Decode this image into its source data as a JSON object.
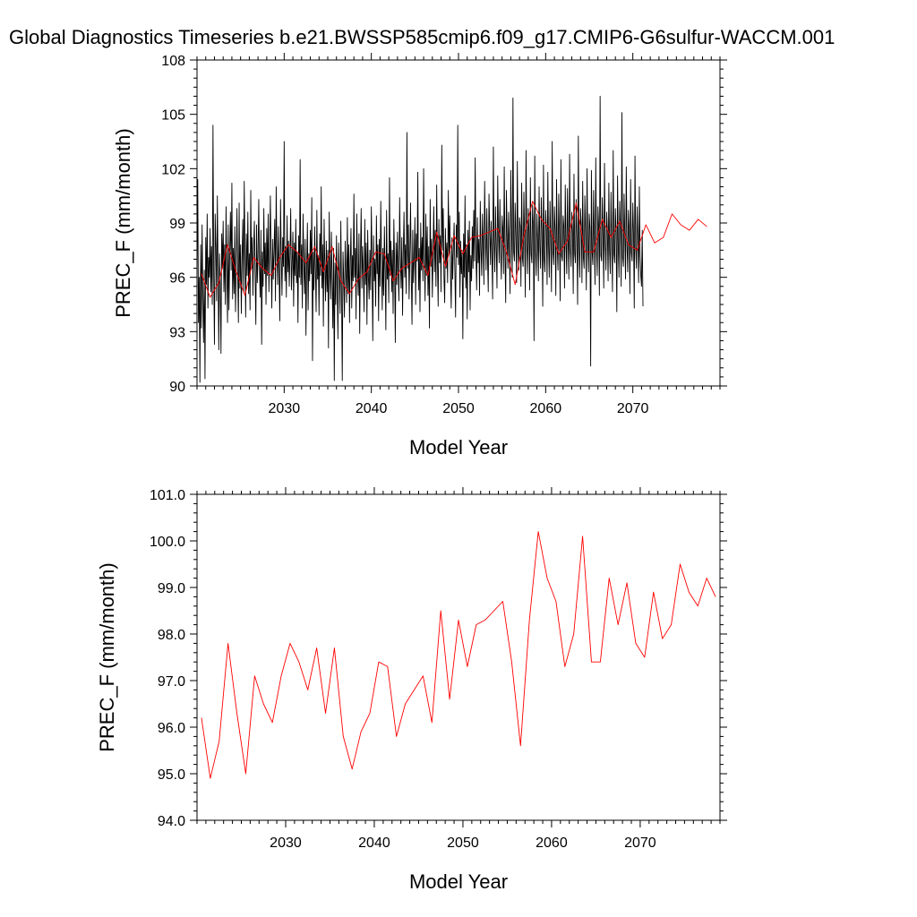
{
  "title": "Global Diagnostics Timeseries b.e21.BWSSP585cmip6.f09_g17.CMIP6-G6sulfur-WACCM.001",
  "colors": {
    "monthly_line": "#000000",
    "annual_line": "#ff0000",
    "axis": "#000000"
  },
  "chart_data": [
    {
      "type": "line",
      "xlabel": "Model Year",
      "ylabel": "PREC_F (mm/month)",
      "xlim": [
        2020,
        2080
      ],
      "ylim": [
        90,
        108
      ],
      "x_ticks": [
        2030,
        2040,
        2050,
        2060,
        2070
      ],
      "x_tick_labels": [
        "2030",
        "2040",
        "2050",
        "2060",
        "2070"
      ],
      "y_ticks": [
        90,
        93,
        96,
        99,
        102,
        105,
        108
      ],
      "y_tick_labels": [
        "90",
        "93",
        "96",
        "99",
        "102",
        "105",
        "108"
      ],
      "grid": false,
      "legend": "none",
      "series": [
        {
          "style": "monthly",
          "color": "#000000",
          "x_start": 2020,
          "x_step": 0.08333,
          "values": [
            96.2,
            101.4,
            93.5,
            96.0,
            90.2,
            97.8,
            93.2,
            98.9,
            95.1,
            92.4,
            96.4,
            90.4,
            98.2,
            95.6,
            99.5,
            94.3,
            97.1,
            96.0,
            98.7,
            95.2,
            97.7,
            94.5,
            104.4,
            96.2,
            92.3,
            99.5,
            97.6,
            94.7,
            100.5,
            96.2,
            92.0,
            97.3,
            95.7,
            91.8,
            98.4,
            96.5,
            99.1,
            95.2,
            97.8,
            94.5,
            99.9,
            96.2,
            93.5,
            98.9,
            94.2,
            97.3,
            99.6,
            96.4,
            101.2,
            94.8,
            97.6,
            95.1,
            98.8,
            94.1,
            96.5,
            99.8,
            96.2,
            93.5,
            100.1,
            95.4,
            97.8,
            94.0,
            96.9,
            99.2,
            95.2,
            101.3,
            97.5,
            93.8,
            98.4,
            96.1,
            99.6,
            95.1,
            97.3,
            94.2,
            100.8,
            96.5,
            98.2,
            95.0,
            97.6,
            99.1,
            96.0,
            93.4,
            98.9,
            95.7,
            97.2,
            100.3,
            96.4,
            94.9,
            98.6,
            92.3,
            97.4,
            95.5,
            99.8,
            96.2,
            97.9,
            94.5,
            98.7,
            96.1,
            99.5,
            95.2,
            97.6,
            100.5,
            96.8,
            94.3,
            98.1,
            95.9,
            97.5,
            99.2,
            94.7,
            101.0,
            97.3,
            95.6,
            98.8,
            96.4,
            93.6,
            100.3,
            97.1,
            95.0,
            98.2,
            96.6,
            103.5,
            95.8,
            97.7,
            94.9,
            99.4,
            96.3,
            98.0,
            95.5,
            97.2,
            99.8,
            95.3,
            96.7,
            98.5,
            94.4,
            97.9,
            96.1,
            99.2,
            95.7,
            97.4,
            93.5,
            98.3,
            96.0,
            102.5,
            95.6,
            97.8,
            94.3,
            99.5,
            96.8,
            95.1,
            98.1,
            92.8,
            96.5,
            99.0,
            94.2,
            97.3,
            95.8,
            98.6,
            96.2,
            100.4,
            91.4,
            97.4,
            95.3,
            98.8,
            96.5,
            94.1,
            99.7,
            95.9,
            97.2,
            93.9,
            98.4,
            96.1,
            101.0,
            95.4,
            97.8,
            93.3,
            99.2,
            96.6,
            94.7,
            98.0,
            95.2,
            97.5,
            92.1,
            99.6,
            96.3,
            94.8,
            98.5,
            95.9,
            93.2,
            97.6,
            90.3,
            96.8,
            94.5,
            98.3,
            95.7,
            92.6,
            97.9,
            96.1,
            94.0,
            99.1,
            95.3,
            90.3,
            97.4,
            95.9,
            93.8,
            98.0,
            96.4,
            94.6,
            99.3,
            95.1,
            97.8,
            93.5,
            96.9,
            98.7,
            94.3,
            97.2,
            95.8,
            100.6,
            96.0,
            97.6,
            93.7,
            99.5,
            96.3,
            95.0,
            98.4,
            92.9,
            97.1,
            99.8,
            95.4,
            97.7,
            96.2,
            94.1,
            99.2,
            95.6,
            97.9,
            93.4,
            98.6,
            96.0,
            94.8,
            97.5,
            95.3,
            99.9,
            96.7,
            92.5,
            98.3,
            95.8,
            97.0,
            94.4,
            99.4,
            96.2,
            97.8,
            93.6,
            98.1,
            95.5,
            100.2,
            96.9,
            94.2,
            97.6,
            95.0,
            98.8,
            96.4,
            93.1,
            99.7,
            95.9,
            97.3,
            94.6,
            101.5,
            96.1,
            98.0,
            95.2,
            97.5,
            94.0,
            99.2,
            96.8,
            92.4,
            97.9,
            95.6,
            98.5,
            96.3,
            94.7,
            100.4,
            97.0,
            95.4,
            98.2,
            93.9,
            97.4,
            99.6,
            96.0,
            97.8,
            95.1,
            104.0,
            96.5,
            98.9,
            94.8,
            97.3,
            100.1,
            96.2,
            93.4,
            98.6,
            95.7,
            97.1,
            99.3,
            94.5,
            98.4,
            96.9,
            101.8,
            95.3,
            97.6,
            94.1,
            99.0,
            96.4,
            98.2,
            95.8,
            102.0,
            97.2,
            94.7,
            99.5,
            96.1,
            98.8,
            95.0,
            97.7,
            93.2,
            100.3,
            96.6,
            98.1,
            94.9,
            97.4,
            99.9,
            96.3,
            98.6,
            95.5,
            101.1,
            97.0,
            94.4,
            99.2,
            96.8,
            98.3,
            95.2,
            103.3,
            97.5,
            99.8,
            96.0,
            94.6,
            98.7,
            96.5,
            97.9,
            95.7,
            100.8,
            97.3,
            99.4,
            96.1,
            94.3,
            98.2,
            95.9,
            97.6,
            99.0,
            96.4,
            93.8,
            98.9,
            97.1,
            104.4,
            96.7,
            99.6,
            94.9,
            98.0,
            96.2,
            97.5,
            92.6,
            98.4,
            96.0,
            100.5,
            95.4,
            97.8,
            93.7,
            98.6,
            96.3,
            99.1,
            94.2,
            97.2,
            95.8,
            98.8,
            96.5,
            99.7,
            96.9,
            102.6,
            97.4,
            95.3,
            99.3,
            96.8,
            98.1,
            95.0,
            100.2,
            97.6,
            96.1,
            99.5,
            97.9,
            95.6,
            101.3,
            98.2,
            96.4,
            99.8,
            97.0,
            95.2,
            100.6,
            98.5,
            96.7,
            99.1,
            97.3,
            94.8,
            103.2,
            98.0,
            96.3,
            99.9,
            97.7,
            95.4,
            101.6,
            98.4,
            96.8,
            100.3,
            97.5,
            95.9,
            99.4,
            98.7,
            96.2,
            102.1,
            97.2,
            94.6,
            100.8,
            98.1,
            96.5,
            99.6,
            97.8,
            95.1,
            101.9,
            98.6,
            96.0,
            105.9,
            97.4,
            96.9,
            100.1,
            98.3,
            95.7,
            102.4,
            97.6,
            96.4,
            99.3,
            98.8,
            95.5,
            101.2,
            97.1,
            96.6,
            100.7,
            98.2,
            94.9,
            103.0,
            97.9,
            96.2,
            99.8,
            98.5,
            95.3,
            101.5,
            97.3,
            96.8,
            100.0,
            98.9,
            92.5,
            102.7,
            97.5,
            96.1,
            99.5,
            98.0,
            95.8,
            101.0,
            97.7,
            96.5,
            100.4,
            98.4,
            94.4,
            102.2,
            97.0,
            96.3,
            99.7,
            98.7,
            95.6,
            101.8,
            97.8,
            96.0,
            100.2,
            98.1,
            95.2,
            103.5,
            97.4,
            96.7,
            99.9,
            98.6,
            95.0,
            101.4,
            97.6,
            96.4,
            100.6,
            98.3,
            94.7,
            102.5,
            97.2,
            96.9,
            99.4,
            98.8,
            95.4,
            101.1,
            97.9,
            96.2,
            100.9,
            98.0,
            95.9,
            102.8,
            97.5,
            96.6,
            99.6,
            98.5,
            95.1,
            101.7,
            97.3,
            96.8,
            100.3,
            98.2,
            94.5,
            103.8,
            97.7,
            96.0,
            99.8,
            98.9,
            95.7,
            101.3,
            97.1,
            96.5,
            100.5,
            98.4,
            95.3,
            102.0,
            97.8,
            96.3,
            99.5,
            98.7,
            91.1,
            101.9,
            97.4,
            96.7,
            100.8,
            98.1,
            95.6,
            102.6,
            97.6,
            96.1,
            99.9,
            98.8,
            95.0,
            106.0,
            97.2,
            96.9,
            100.4,
            98.3,
            95.4,
            102.3,
            97.9,
            96.4,
            99.6,
            98.6,
            95.8,
            101.2,
            97.5,
            96.2,
            100.7,
            98.0,
            95.2,
            103.0,
            97.3,
            96.8,
            99.8,
            98.5,
            94.1,
            101.6,
            97.7,
            96.0,
            100.2,
            98.9,
            95.5,
            105.1,
            97.1,
            96.6,
            100.6,
            98.2,
            95.9,
            102.1,
            97.8,
            96.3,
            99.7,
            98.7,
            95.1,
            101.4,
            97.4,
            96.9,
            100.1,
            98.4,
            94.3,
            102.7,
            97.6,
            96.5,
            99.9,
            98.1,
            95.7,
            101.0,
            97.2,
            96.1,
            95.5,
            98.6,
            94.4
          ]
        },
        {
          "style": "annual",
          "color": "#ff0000",
          "x": [
            2020.5,
            2021.5,
            2022.5,
            2023.5,
            2024.5,
            2025.5,
            2026.5,
            2027.5,
            2028.5,
            2029.5,
            2030.5,
            2031.5,
            2032.5,
            2033.5,
            2034.5,
            2035.5,
            2036.5,
            2037.5,
            2038.5,
            2039.5,
            2040.5,
            2041.5,
            2042.5,
            2043.5,
            2044.5,
            2045.5,
            2046.5,
            2047.5,
            2048.5,
            2049.5,
            2050.5,
            2051.5,
            2052.5,
            2053.5,
            2054.5,
            2055.5,
            2056.5,
            2057.5,
            2058.5,
            2059.5,
            2060.5,
            2061.5,
            2062.5,
            2063.5,
            2064.5,
            2065.5,
            2066.5,
            2067.5,
            2068.5,
            2069.5,
            2070.5,
            2071.5,
            2072.5,
            2073.5,
            2074.5,
            2075.5,
            2076.5,
            2077.5,
            2078.5
          ],
          "values": [
            96.2,
            94.9,
            95.7,
            97.8,
            96.3,
            95.0,
            97.1,
            96.5,
            96.1,
            97.1,
            97.8,
            97.4,
            96.8,
            97.7,
            96.3,
            97.7,
            95.8,
            95.1,
            95.9,
            96.3,
            97.4,
            97.3,
            95.8,
            96.5,
            96.8,
            97.1,
            96.1,
            98.5,
            96.6,
            98.3,
            97.3,
            98.2,
            98.3,
            98.5,
            98.7,
            97.4,
            95.6,
            98.3,
            100.2,
            99.2,
            98.7,
            97.3,
            98.0,
            100.1,
            97.4,
            97.4,
            99.2,
            98.2,
            99.1,
            97.8,
            97.5,
            98.9,
            97.9,
            98.2,
            99.5,
            98.9,
            98.6,
            99.2,
            98.8
          ]
        }
      ]
    },
    {
      "type": "line",
      "xlabel": "Model Year",
      "ylabel": "PREC_F (mm/month)",
      "xlim": [
        2020,
        2079
      ],
      "ylim": [
        94,
        101
      ],
      "x_ticks": [
        2030,
        2040,
        2050,
        2060,
        2070
      ],
      "x_tick_labels": [
        "2030",
        "2040",
        "2050",
        "2060",
        "2070"
      ],
      "y_ticks": [
        94,
        95,
        96,
        97,
        98,
        99,
        100,
        101
      ],
      "y_tick_labels": [
        "94.0",
        "95.0",
        "96.0",
        "97.0",
        "98.0",
        "99.0",
        "100.0",
        "101.0"
      ],
      "grid": false,
      "legend": "none",
      "series": [
        {
          "style": "annual",
          "color": "#ff0000",
          "x": [
            2020.5,
            2021.5,
            2022.5,
            2023.5,
            2024.5,
            2025.5,
            2026.5,
            2027.5,
            2028.5,
            2029.5,
            2030.5,
            2031.5,
            2032.5,
            2033.5,
            2034.5,
            2035.5,
            2036.5,
            2037.5,
            2038.5,
            2039.5,
            2040.5,
            2041.5,
            2042.5,
            2043.5,
            2044.5,
            2045.5,
            2046.5,
            2047.5,
            2048.5,
            2049.5,
            2050.5,
            2051.5,
            2052.5,
            2053.5,
            2054.5,
            2055.5,
            2056.5,
            2057.5,
            2058.5,
            2059.5,
            2060.5,
            2061.5,
            2062.5,
            2063.5,
            2064.5,
            2065.5,
            2066.5,
            2067.5,
            2068.5,
            2069.5,
            2070.5,
            2071.5,
            2072.5,
            2073.5,
            2074.5,
            2075.5,
            2076.5,
            2077.5,
            2078.5
          ],
          "values": [
            96.2,
            94.9,
            95.7,
            97.8,
            96.3,
            95.0,
            97.1,
            96.5,
            96.1,
            97.1,
            97.8,
            97.4,
            96.8,
            97.7,
            96.3,
            97.7,
            95.8,
            95.1,
            95.9,
            96.3,
            97.4,
            97.3,
            95.8,
            96.5,
            96.8,
            97.1,
            96.1,
            98.5,
            96.6,
            98.3,
            97.3,
            98.2,
            98.3,
            98.5,
            98.7,
            97.4,
            95.6,
            98.3,
            100.2,
            99.2,
            98.7,
            97.3,
            98.0,
            100.1,
            97.4,
            97.4,
            99.2,
            98.2,
            99.1,
            97.8,
            97.5,
            98.9,
            97.9,
            98.2,
            99.5,
            98.9,
            98.6,
            99.2,
            98.8
          ]
        }
      ]
    }
  ]
}
